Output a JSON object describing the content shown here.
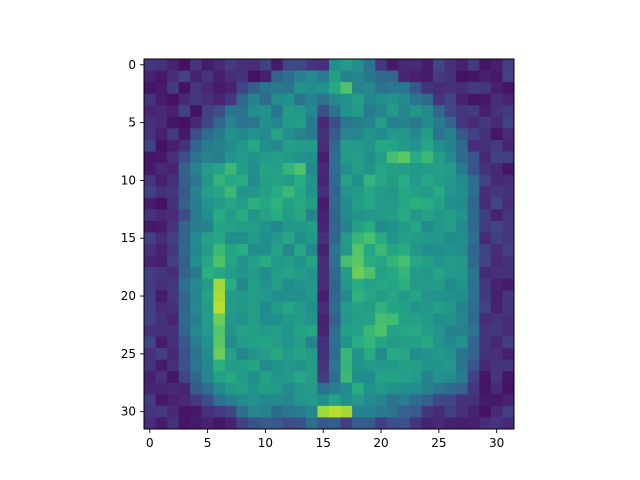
{
  "chart_data": {
    "type": "heatmap",
    "title": "",
    "xlabel": "",
    "ylabel": "",
    "colormap": "viridis",
    "value_range": [
      0,
      1
    ],
    "grid": false,
    "rows": 32,
    "cols": 32,
    "x_ticks": [
      0,
      5,
      10,
      15,
      20,
      25,
      30
    ],
    "y_ticks": [
      0,
      5,
      10,
      15,
      20,
      25,
      30
    ],
    "xlim": [
      -0.5,
      31.5
    ],
    "ylim": [
      31.5,
      -0.5
    ],
    "values": [
      [
        0.16,
        0.15,
        0.1,
        0.05,
        0.16,
        0.08,
        0.12,
        0.18,
        0.14,
        0.13,
        0.2,
        0.08,
        0.22,
        0.22,
        0.16,
        0.14,
        0.5,
        0.54,
        0.5,
        0.38,
        0.16,
        0.08,
        0.12,
        0.12,
        0.08,
        0.21,
        0.14,
        0.1,
        0.18,
        0.06,
        0.09,
        0.19
      ],
      [
        0.1,
        0.07,
        0.13,
        0.2,
        0.1,
        0.16,
        0.09,
        0.13,
        0.15,
        0.05,
        0.09,
        0.32,
        0.37,
        0.44,
        0.48,
        0.42,
        0.56,
        0.44,
        0.46,
        0.4,
        0.35,
        0.34,
        0.11,
        0.09,
        0.08,
        0.18,
        0.15,
        0.05,
        0.06,
        0.09,
        0.07,
        0.2
      ],
      [
        0.06,
        0.08,
        0.18,
        0.05,
        0.16,
        0.12,
        0.08,
        0.1,
        0.21,
        0.3,
        0.39,
        0.41,
        0.39,
        0.52,
        0.49,
        0.51,
        0.61,
        0.72,
        0.44,
        0.47,
        0.38,
        0.41,
        0.4,
        0.27,
        0.15,
        0.13,
        0.14,
        0.13,
        0.18,
        0.17,
        0.09,
        0.06
      ],
      [
        0.15,
        0.08,
        0.05,
        0.12,
        0.17,
        0.14,
        0.11,
        0.17,
        0.34,
        0.44,
        0.36,
        0.49,
        0.51,
        0.39,
        0.45,
        0.38,
        0.47,
        0.51,
        0.56,
        0.46,
        0.5,
        0.51,
        0.48,
        0.4,
        0.35,
        0.16,
        0.21,
        0.1,
        0.06,
        0.07,
        0.13,
        0.11
      ],
      [
        0.11,
        0.12,
        0.1,
        0.2,
        0.05,
        0.2,
        0.24,
        0.39,
        0.38,
        0.49,
        0.52,
        0.4,
        0.55,
        0.54,
        0.46,
        0.24,
        0.39,
        0.51,
        0.55,
        0.42,
        0.46,
        0.55,
        0.46,
        0.53,
        0.47,
        0.34,
        0.22,
        0.16,
        0.18,
        0.09,
        0.15,
        0.18
      ],
      [
        0.14,
        0.12,
        0.06,
        0.05,
        0.12,
        0.21,
        0.34,
        0.45,
        0.38,
        0.4,
        0.5,
        0.46,
        0.54,
        0.56,
        0.42,
        0.12,
        0.24,
        0.4,
        0.43,
        0.45,
        0.56,
        0.43,
        0.44,
        0.41,
        0.48,
        0.42,
        0.33,
        0.16,
        0.12,
        0.17,
        0.12,
        0.2
      ],
      [
        0.15,
        0.09,
        0.18,
        0.07,
        0.24,
        0.36,
        0.42,
        0.51,
        0.47,
        0.51,
        0.48,
        0.59,
        0.5,
        0.45,
        0.42,
        0.14,
        0.29,
        0.46,
        0.46,
        0.52,
        0.48,
        0.54,
        0.53,
        0.47,
        0.56,
        0.39,
        0.45,
        0.28,
        0.2,
        0.14,
        0.06,
        0.12
      ],
      [
        0.2,
        0.05,
        0.09,
        0.15,
        0.33,
        0.42,
        0.45,
        0.48,
        0.53,
        0.61,
        0.5,
        0.46,
        0.56,
        0.56,
        0.55,
        0.13,
        0.35,
        0.55,
        0.54,
        0.52,
        0.61,
        0.59,
        0.54,
        0.52,
        0.6,
        0.5,
        0.45,
        0.35,
        0.13,
        0.15,
        0.18,
        0.11
      ],
      [
        0.06,
        0.07,
        0.14,
        0.24,
        0.39,
        0.45,
        0.43,
        0.52,
        0.54,
        0.51,
        0.55,
        0.57,
        0.54,
        0.52,
        0.5,
        0.09,
        0.37,
        0.54,
        0.56,
        0.5,
        0.56,
        0.7,
        0.75,
        0.62,
        0.68,
        0.56,
        0.48,
        0.35,
        0.27,
        0.12,
        0.2,
        0.19
      ],
      [
        0.07,
        0.12,
        0.11,
        0.32,
        0.45,
        0.55,
        0.59,
        0.68,
        0.56,
        0.5,
        0.58,
        0.57,
        0.66,
        0.72,
        0.47,
        0.12,
        0.37,
        0.5,
        0.56,
        0.52,
        0.6,
        0.57,
        0.56,
        0.54,
        0.55,
        0.57,
        0.55,
        0.42,
        0.25,
        0.15,
        0.12,
        0.06
      ],
      [
        0.16,
        0.09,
        0.14,
        0.31,
        0.4,
        0.53,
        0.66,
        0.6,
        0.62,
        0.48,
        0.56,
        0.58,
        0.55,
        0.62,
        0.52,
        0.11,
        0.36,
        0.58,
        0.5,
        0.66,
        0.6,
        0.56,
        0.62,
        0.54,
        0.6,
        0.56,
        0.53,
        0.48,
        0.36,
        0.2,
        0.12,
        0.13
      ],
      [
        0.2,
        0.14,
        0.17,
        0.28,
        0.45,
        0.56,
        0.6,
        0.68,
        0.52,
        0.53,
        0.57,
        0.62,
        0.68,
        0.6,
        0.51,
        0.14,
        0.33,
        0.52,
        0.55,
        0.6,
        0.54,
        0.53,
        0.6,
        0.57,
        0.54,
        0.62,
        0.52,
        0.5,
        0.37,
        0.13,
        0.17,
        0.14
      ],
      [
        0.08,
        0.05,
        0.15,
        0.31,
        0.43,
        0.51,
        0.55,
        0.6,
        0.56,
        0.64,
        0.6,
        0.65,
        0.57,
        0.61,
        0.56,
        0.08,
        0.35,
        0.48,
        0.56,
        0.6,
        0.54,
        0.54,
        0.6,
        0.64,
        0.63,
        0.58,
        0.49,
        0.48,
        0.33,
        0.13,
        0.21,
        0.13
      ],
      [
        0.15,
        0.12,
        0.13,
        0.23,
        0.42,
        0.5,
        0.63,
        0.55,
        0.62,
        0.52,
        0.58,
        0.63,
        0.56,
        0.6,
        0.45,
        0.1,
        0.33,
        0.48,
        0.52,
        0.53,
        0.55,
        0.56,
        0.62,
        0.53,
        0.58,
        0.54,
        0.56,
        0.52,
        0.35,
        0.19,
        0.1,
        0.16
      ],
      [
        0.07,
        0.08,
        0.16,
        0.33,
        0.43,
        0.45,
        0.59,
        0.57,
        0.56,
        0.56,
        0.51,
        0.46,
        0.53,
        0.53,
        0.56,
        0.11,
        0.34,
        0.44,
        0.57,
        0.62,
        0.48,
        0.51,
        0.55,
        0.6,
        0.48,
        0.53,
        0.56,
        0.47,
        0.34,
        0.18,
        0.21,
        0.17
      ],
      [
        0.2,
        0.13,
        0.2,
        0.33,
        0.48,
        0.58,
        0.6,
        0.49,
        0.49,
        0.55,
        0.5,
        0.53,
        0.6,
        0.5,
        0.54,
        0.14,
        0.33,
        0.55,
        0.67,
        0.71,
        0.63,
        0.52,
        0.57,
        0.55,
        0.54,
        0.53,
        0.48,
        0.49,
        0.37,
        0.12,
        0.19,
        0.17
      ],
      [
        0.14,
        0.1,
        0.17,
        0.35,
        0.46,
        0.55,
        0.68,
        0.59,
        0.63,
        0.49,
        0.5,
        0.58,
        0.46,
        0.6,
        0.47,
        0.1,
        0.4,
        0.53,
        0.73,
        0.6,
        0.68,
        0.59,
        0.62,
        0.53,
        0.49,
        0.5,
        0.51,
        0.49,
        0.34,
        0.2,
        0.13,
        0.19
      ],
      [
        0.11,
        0.09,
        0.19,
        0.31,
        0.5,
        0.6,
        0.72,
        0.59,
        0.52,
        0.57,
        0.62,
        0.54,
        0.56,
        0.52,
        0.59,
        0.13,
        0.38,
        0.7,
        0.75,
        0.63,
        0.6,
        0.66,
        0.7,
        0.6,
        0.57,
        0.52,
        0.55,
        0.53,
        0.35,
        0.2,
        0.12,
        0.15
      ],
      [
        0.19,
        0.17,
        0.13,
        0.33,
        0.42,
        0.64,
        0.6,
        0.56,
        0.52,
        0.55,
        0.49,
        0.56,
        0.58,
        0.55,
        0.52,
        0.13,
        0.35,
        0.56,
        0.78,
        0.72,
        0.58,
        0.6,
        0.66,
        0.55,
        0.53,
        0.59,
        0.53,
        0.53,
        0.39,
        0.12,
        0.14,
        0.15
      ],
      [
        0.18,
        0.14,
        0.17,
        0.38,
        0.48,
        0.55,
        0.86,
        0.63,
        0.46,
        0.57,
        0.51,
        0.56,
        0.49,
        0.52,
        0.53,
        0.13,
        0.33,
        0.53,
        0.63,
        0.58,
        0.6,
        0.59,
        0.64,
        0.54,
        0.54,
        0.56,
        0.47,
        0.52,
        0.38,
        0.17,
        0.1,
        0.08
      ],
      [
        0.19,
        0.08,
        0.17,
        0.34,
        0.46,
        0.58,
        0.88,
        0.55,
        0.53,
        0.56,
        0.53,
        0.49,
        0.5,
        0.5,
        0.53,
        0.09,
        0.34,
        0.48,
        0.65,
        0.6,
        0.56,
        0.6,
        0.55,
        0.59,
        0.52,
        0.51,
        0.5,
        0.5,
        0.38,
        0.18,
        0.09,
        0.16
      ],
      [
        0.19,
        0.12,
        0.15,
        0.34,
        0.47,
        0.56,
        0.9,
        0.55,
        0.53,
        0.56,
        0.48,
        0.55,
        0.6,
        0.54,
        0.5,
        0.13,
        0.36,
        0.55,
        0.58,
        0.56,
        0.65,
        0.59,
        0.57,
        0.52,
        0.53,
        0.57,
        0.53,
        0.45,
        0.37,
        0.2,
        0.1,
        0.16
      ],
      [
        0.2,
        0.15,
        0.11,
        0.35,
        0.43,
        0.55,
        0.78,
        0.53,
        0.51,
        0.56,
        0.49,
        0.5,
        0.54,
        0.55,
        0.52,
        0.1,
        0.31,
        0.53,
        0.57,
        0.58,
        0.7,
        0.69,
        0.58,
        0.57,
        0.55,
        0.5,
        0.52,
        0.46,
        0.35,
        0.13,
        0.16,
        0.13
      ],
      [
        0.14,
        0.14,
        0.15,
        0.33,
        0.47,
        0.54,
        0.73,
        0.52,
        0.58,
        0.57,
        0.54,
        0.56,
        0.52,
        0.58,
        0.6,
        0.11,
        0.37,
        0.57,
        0.58,
        0.67,
        0.72,
        0.58,
        0.6,
        0.61,
        0.56,
        0.52,
        0.45,
        0.45,
        0.39,
        0.16,
        0.17,
        0.13
      ],
      [
        0.21,
        0.08,
        0.14,
        0.28,
        0.43,
        0.51,
        0.75,
        0.48,
        0.55,
        0.57,
        0.59,
        0.56,
        0.52,
        0.56,
        0.45,
        0.14,
        0.37,
        0.51,
        0.63,
        0.66,
        0.59,
        0.55,
        0.56,
        0.57,
        0.61,
        0.52,
        0.46,
        0.51,
        0.33,
        0.16,
        0.11,
        0.19
      ],
      [
        0.14,
        0.19,
        0.12,
        0.25,
        0.39,
        0.49,
        0.78,
        0.57,
        0.46,
        0.52,
        0.56,
        0.61,
        0.55,
        0.59,
        0.55,
        0.14,
        0.36,
        0.67,
        0.51,
        0.62,
        0.48,
        0.62,
        0.6,
        0.49,
        0.52,
        0.53,
        0.51,
        0.39,
        0.34,
        0.15,
        0.14,
        0.09
      ],
      [
        0.15,
        0.08,
        0.14,
        0.25,
        0.4,
        0.46,
        0.64,
        0.55,
        0.56,
        0.59,
        0.48,
        0.52,
        0.53,
        0.52,
        0.56,
        0.16,
        0.4,
        0.66,
        0.52,
        0.54,
        0.53,
        0.54,
        0.57,
        0.56,
        0.51,
        0.52,
        0.53,
        0.39,
        0.26,
        0.12,
        0.15,
        0.16
      ],
      [
        0.09,
        0.15,
        0.06,
        0.21,
        0.34,
        0.46,
        0.57,
        0.61,
        0.55,
        0.5,
        0.57,
        0.52,
        0.54,
        0.6,
        0.56,
        0.18,
        0.37,
        0.68,
        0.49,
        0.48,
        0.58,
        0.57,
        0.57,
        0.55,
        0.45,
        0.51,
        0.49,
        0.42,
        0.2,
        0.06,
        0.16,
        0.06
      ],
      [
        0.11,
        0.11,
        0.12,
        0.11,
        0.3,
        0.37,
        0.48,
        0.54,
        0.56,
        0.52,
        0.56,
        0.54,
        0.48,
        0.53,
        0.55,
        0.38,
        0.43,
        0.48,
        0.63,
        0.51,
        0.54,
        0.51,
        0.5,
        0.49,
        0.45,
        0.4,
        0.36,
        0.32,
        0.17,
        0.06,
        0.12,
        0.05
      ],
      [
        0.18,
        0.07,
        0.1,
        0.12,
        0.18,
        0.24,
        0.38,
        0.43,
        0.48,
        0.51,
        0.46,
        0.48,
        0.46,
        0.53,
        0.54,
        0.5,
        0.58,
        0.5,
        0.54,
        0.48,
        0.46,
        0.39,
        0.43,
        0.36,
        0.31,
        0.22,
        0.22,
        0.15,
        0.14,
        0.08,
        0.07,
        0.1
      ],
      [
        0.16,
        0.18,
        0.12,
        0.06,
        0.07,
        0.15,
        0.18,
        0.22,
        0.37,
        0.46,
        0.44,
        0.36,
        0.4,
        0.42,
        0.47,
        0.86,
        0.9,
        0.87,
        0.44,
        0.44,
        0.41,
        0.39,
        0.32,
        0.29,
        0.16,
        0.12,
        0.19,
        0.14,
        0.1,
        0.05,
        0.12,
        0.19
      ],
      [
        0.13,
        0.08,
        0.14,
        0.06,
        0.08,
        0.1,
        0.06,
        0.1,
        0.2,
        0.25,
        0.29,
        0.28,
        0.23,
        0.25,
        0.37,
        0.28,
        0.3,
        0.19,
        0.29,
        0.3,
        0.19,
        0.24,
        0.25,
        0.16,
        0.1,
        0.12,
        0.09,
        0.09,
        0.09,
        0.13,
        0.16,
        0.12
      ]
    ]
  }
}
